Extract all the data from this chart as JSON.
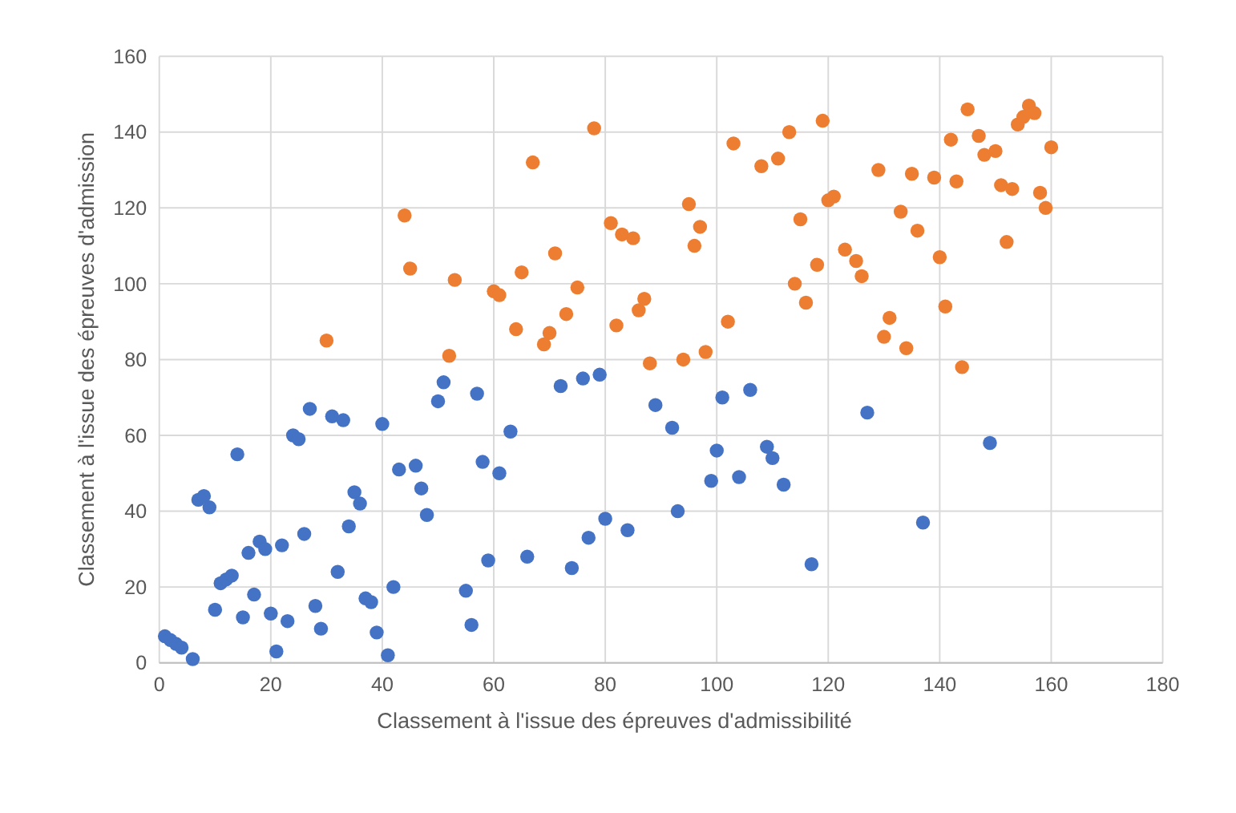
{
  "chart_data": {
    "type": "scatter",
    "xlabel": "Classement à l'issue des épreuves d'admissibilité",
    "ylabel": "Classement à l'issue des épreuves d'admission",
    "series": [
      {
        "color": "#4472c4",
        "x": [
          1,
          2,
          3,
          4,
          6,
          7,
          8,
          9,
          10,
          11,
          12,
          13,
          14,
          15,
          16,
          17,
          18,
          19,
          20,
          21,
          22,
          23,
          24,
          25,
          26,
          27,
          28,
          29,
          31,
          32,
          33,
          34,
          35,
          36,
          37,
          38,
          39,
          40,
          41,
          42,
          43,
          46,
          47,
          48,
          50,
          51,
          55,
          56,
          57,
          58,
          59,
          61,
          63,
          66,
          72,
          74,
          76,
          77,
          79,
          80,
          84,
          89,
          92,
          93,
          99,
          100,
          101,
          104,
          106,
          109,
          110,
          112,
          117,
          127,
          137,
          149
        ],
        "values": [
          7,
          6,
          5,
          4,
          1,
          43,
          44,
          41,
          14,
          21,
          22,
          23,
          55,
          12,
          29,
          18,
          32,
          30,
          13,
          3,
          31,
          11,
          60,
          59,
          34,
          67,
          15,
          9,
          65,
          24,
          64,
          36,
          45,
          42,
          17,
          16,
          8,
          63,
          2,
          20,
          51,
          52,
          46,
          39,
          69,
          74,
          19,
          10,
          71,
          53,
          27,
          50,
          61,
          28,
          73,
          25,
          75,
          33,
          76,
          38,
          35,
          68,
          62,
          40,
          48,
          56,
          70,
          49,
          72,
          57,
          54,
          47,
          26,
          66,
          37,
          58
        ]
      },
      {
        "color": "#ed7d31",
        "x": [
          30,
          44,
          45,
          52,
          53,
          60,
          61,
          64,
          65,
          67,
          69,
          70,
          71,
          73,
          75,
          78,
          81,
          82,
          83,
          85,
          86,
          87,
          88,
          94,
          95,
          96,
          97,
          98,
          102,
          103,
          108,
          111,
          113,
          114,
          115,
          116,
          118,
          119,
          120,
          121,
          123,
          125,
          126,
          129,
          130,
          131,
          133,
          134,
          135,
          136,
          139,
          140,
          141,
          142,
          143,
          144,
          145,
          147,
          148,
          150,
          151,
          152,
          153,
          154,
          155,
          156,
          157,
          158,
          159,
          160
        ],
        "values": [
          85,
          118,
          104,
          81,
          101,
          98,
          97,
          88,
          103,
          132,
          84,
          87,
          108,
          92,
          99,
          141,
          116,
          89,
          113,
          112,
          93,
          96,
          79,
          80,
          121,
          110,
          115,
          82,
          90,
          137,
          131,
          133,
          140,
          100,
          117,
          95,
          105,
          143,
          122,
          123,
          109,
          106,
          102,
          130,
          86,
          91,
          119,
          83,
          129,
          114,
          128,
          107,
          94,
          138,
          127,
          78,
          146,
          139,
          134,
          135,
          126,
          111,
          125,
          142,
          144,
          147,
          145,
          124,
          120,
          136
        ]
      }
    ],
    "xlim": [
      0,
      180
    ],
    "xticks": [
      0,
      20,
      40,
      60,
      80,
      100,
      120,
      140,
      160,
      180
    ],
    "ylim": [
      0,
      160
    ],
    "yticks": [
      0,
      20,
      40,
      60,
      80,
      100,
      120,
      140,
      160
    ],
    "grid": true,
    "marker": "circle"
  }
}
